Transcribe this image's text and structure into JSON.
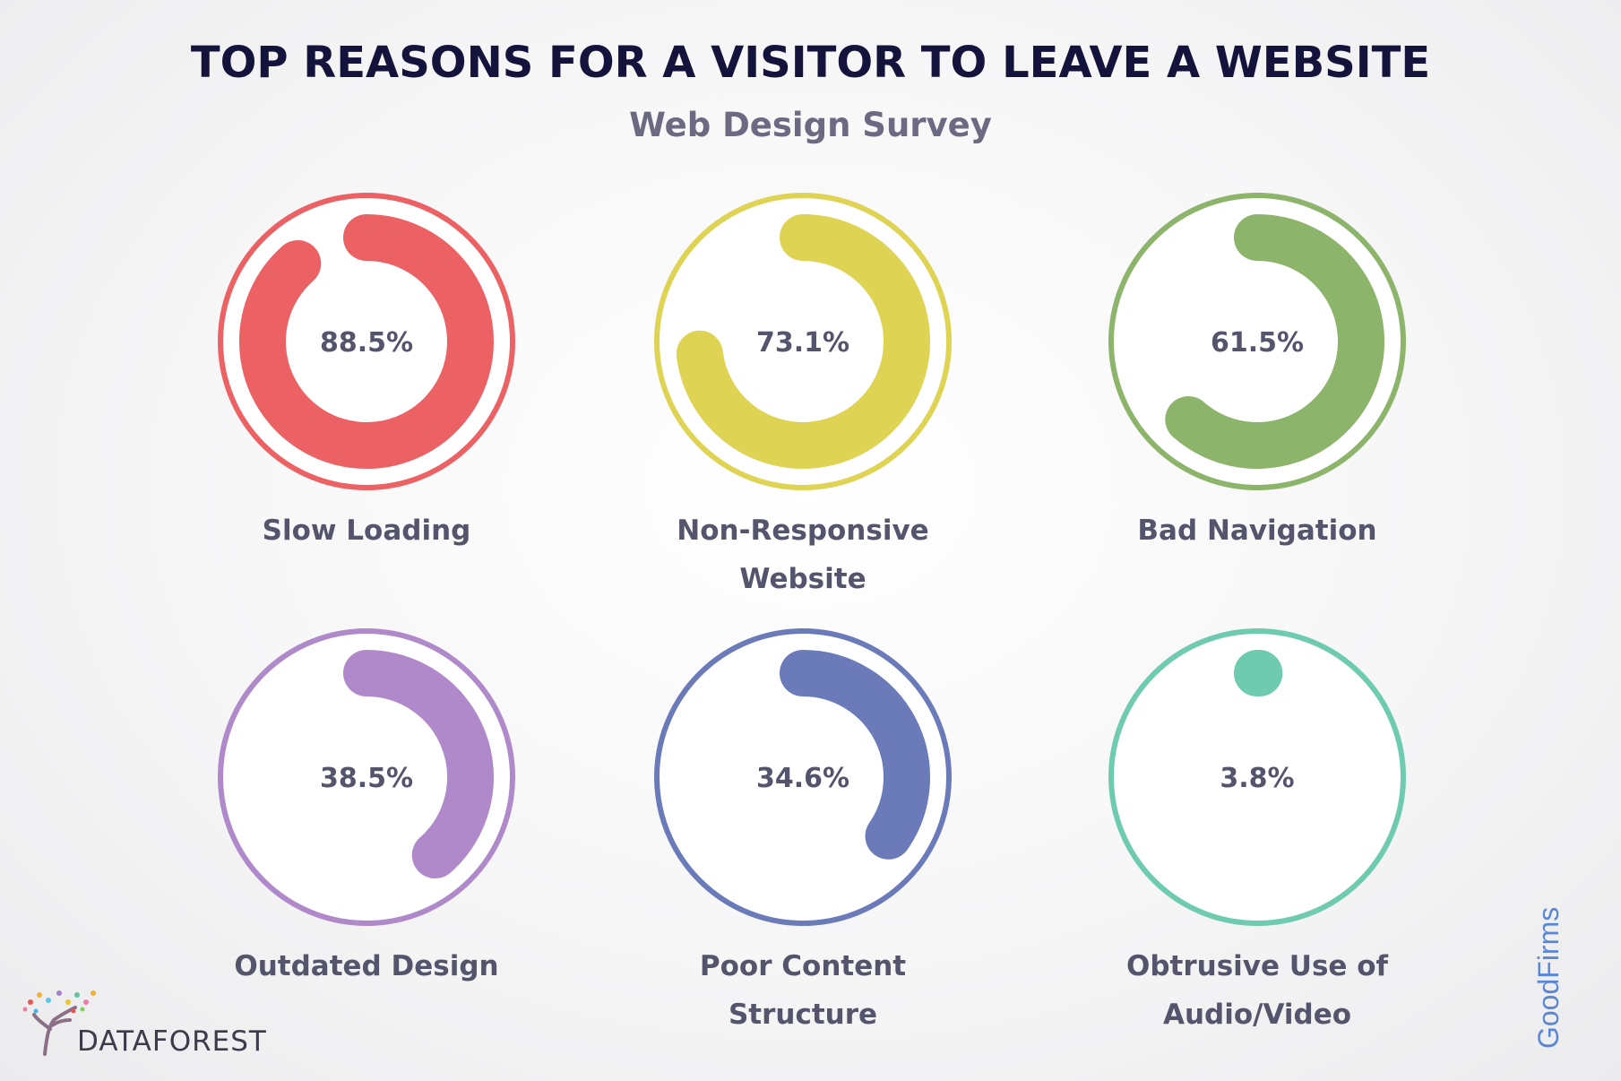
{
  "title": "TOP REASONS FOR A VISITOR TO LEAVE A WEBSITE",
  "subtitle": "Web Design Survey",
  "chart_data": {
    "type": "donut",
    "title": "TOP REASONS FOR A VISITOR TO LEAVE A WEBSITE",
    "subtitle": "Web Design Survey",
    "unit": "%",
    "items": [
      {
        "label_lines": [
          "Slow Loading"
        ],
        "value": 88.5,
        "display": "88.5%",
        "color": "#ec6163"
      },
      {
        "label_lines": [
          "Non-Responsive",
          "Website"
        ],
        "value": 73.1,
        "display": "73.1%",
        "color": "#dfd354"
      },
      {
        "label_lines": [
          "Bad Navigation"
        ],
        "value": 61.5,
        "display": "61.5%",
        "color": "#8db46b"
      },
      {
        "label_lines": [
          "Outdated Design"
        ],
        "value": 38.5,
        "display": "38.5%",
        "color": "#b089ca"
      },
      {
        "label_lines": [
          "Poor Content",
          "Structure"
        ],
        "value": 34.6,
        "display": "34.6%",
        "color": "#6b7bba"
      },
      {
        "label_lines": [
          "Obtrusive Use of",
          "Audio/Video"
        ],
        "value": 3.8,
        "display": "3.8%",
        "color": "#6ecbaf"
      }
    ]
  },
  "branding": {
    "left_logo_text": "DATAFOREST",
    "right_watermark": "GoodFirms"
  }
}
